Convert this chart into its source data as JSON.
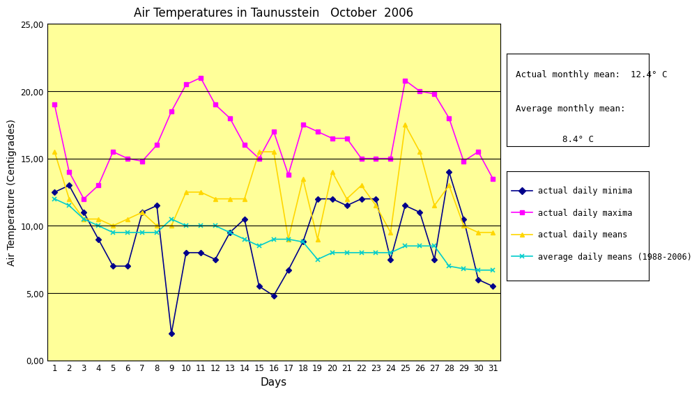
{
  "title": "Air Temperatures in Taunusstein   October  2006",
  "xlabel": "Days",
  "ylabel": "Air Temperature (Centigrades)",
  "ylim": [
    0,
    25
  ],
  "yticks": [
    0,
    5,
    10,
    15,
    20,
    25
  ],
  "ytick_labels": [
    "0,00",
    "5,00",
    "10,00",
    "15,00",
    "20,00",
    "25,00"
  ],
  "days": [
    1,
    2,
    3,
    4,
    5,
    6,
    7,
    8,
    9,
    10,
    11,
    12,
    13,
    14,
    15,
    16,
    17,
    18,
    19,
    20,
    21,
    22,
    23,
    24,
    25,
    26,
    27,
    28,
    29,
    30,
    31
  ],
  "minima": [
    12.5,
    13.0,
    11.0,
    9.0,
    7.0,
    7.0,
    11.0,
    11.5,
    2.0,
    8.0,
    8.0,
    7.5,
    9.5,
    10.5,
    5.5,
    4.8,
    6.7,
    8.8,
    12.0,
    12.0,
    11.5,
    12.0,
    12.0,
    7.5,
    11.5,
    11.0,
    7.5,
    14.0,
    10.5,
    6.0,
    5.5
  ],
  "maxima": [
    19.0,
    14.0,
    12.0,
    13.0,
    15.5,
    15.0,
    14.8,
    16.0,
    18.5,
    20.5,
    21.0,
    19.0,
    18.0,
    16.0,
    15.0,
    17.0,
    13.8,
    17.5,
    17.0,
    16.5,
    16.5,
    15.0,
    15.0,
    15.0,
    20.8,
    20.0,
    19.8,
    18.0,
    14.8,
    15.5,
    13.5
  ],
  "means": [
    15.5,
    12.0,
    10.5,
    10.5,
    10.0,
    10.5,
    11.0,
    10.0,
    10.0,
    12.5,
    12.5,
    12.0,
    12.0,
    12.0,
    15.5,
    15.5,
    9.0,
    13.5,
    9.0,
    14.0,
    12.0,
    13.0,
    11.5,
    9.5,
    17.5,
    15.5,
    11.5,
    13.0,
    10.0,
    9.5,
    9.5
  ],
  "avg_means": [
    12.0,
    11.5,
    10.5,
    10.0,
    9.5,
    9.5,
    9.5,
    9.5,
    10.5,
    10.0,
    10.0,
    10.0,
    9.5,
    9.0,
    8.5,
    9.0,
    9.0,
    8.8,
    7.5,
    8.0,
    8.0,
    8.0,
    8.0,
    8.0,
    8.5,
    8.5,
    8.5,
    7.0,
    6.8,
    6.7,
    6.7
  ],
  "color_minima": "#00008B",
  "color_maxima": "#FF00FF",
  "color_means": "#FFD700",
  "color_avg_means": "#00CCCC",
  "bg_color": "#FFFF99",
  "actual_monthly_mean": "12.4° C",
  "average_monthly_mean": "8.4° C",
  "info_text_line1": "Actual monthly mean:  12.4° C",
  "info_text_line2": "Average monthly mean:",
  "info_text_line3": "            8.4° C"
}
